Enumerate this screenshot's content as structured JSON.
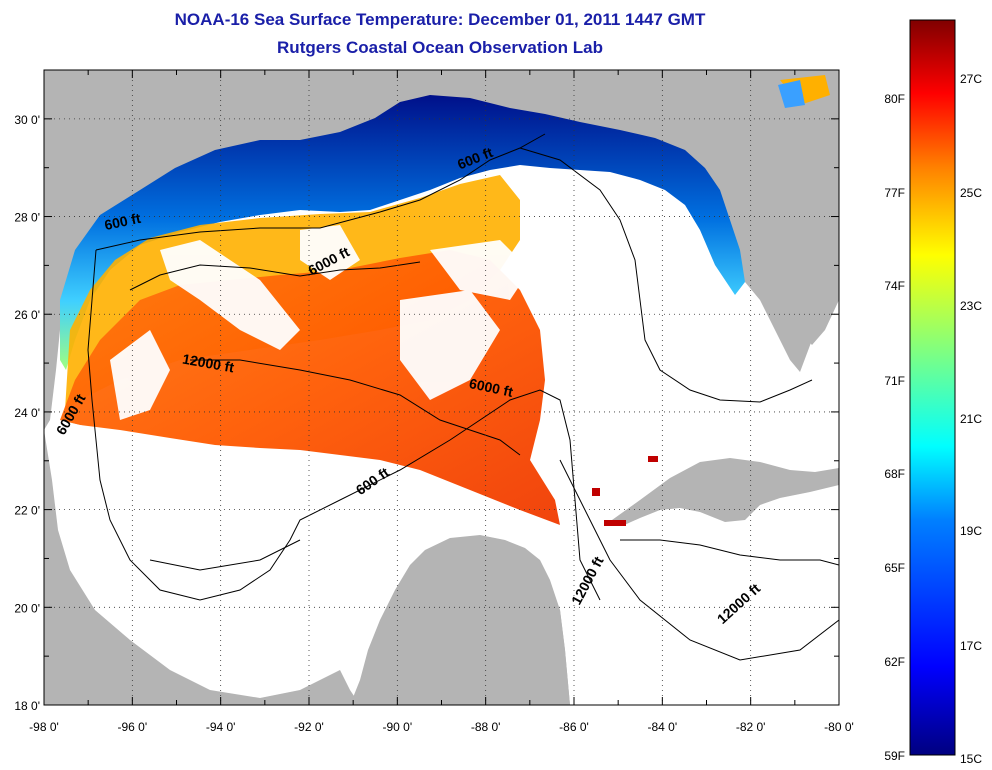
{
  "title": "NOAA-16 Sea Surface Temperature:  December 01, 2011 1447 GMT",
  "subtitle": "Rutgers Coastal Ocean Observation Lab",
  "map": {
    "lon_range": [
      -98,
      -80
    ],
    "lat_range": [
      18,
      31
    ],
    "x_ticks": [
      "-98 0'",
      "-96 0'",
      "-94 0'",
      "-92 0'",
      "-90 0'",
      "-88 0'",
      "-86 0'",
      "-84 0'",
      "-82 0'",
      "-80 0'"
    ],
    "y_ticks": [
      "30 0'",
      "28 0'",
      "26 0'",
      "24 0'",
      "22 0'",
      "20 0'",
      "18 0'"
    ],
    "grid": "dotted",
    "land_color": "#b4b4b4",
    "ocean_color": "#ffffff",
    "contour_labels": [
      {
        "text": "600 ft",
        "lon": -96.2,
        "lat": 27.8
      },
      {
        "text": "6000 ft",
        "lon": -91.5,
        "lat": 27.0
      },
      {
        "text": "600 ft",
        "lon": -88.2,
        "lat": 29.1
      },
      {
        "text": "12000 ft",
        "lon": -94.3,
        "lat": 24.9
      },
      {
        "text": "6000 ft",
        "lon": -87.9,
        "lat": 24.4
      },
      {
        "text": "6000 ft",
        "lon": -97.3,
        "lat": 23.9
      },
      {
        "text": "600 ft",
        "lon": -90.5,
        "lat": 22.5
      },
      {
        "text": "12000 ft",
        "lon": -85.6,
        "lat": 20.5
      },
      {
        "text": "12000 ft",
        "lon": -82.2,
        "lat": 20.0
      }
    ]
  },
  "colorbar": {
    "celsius_labels": [
      "27C",
      "25C",
      "23C",
      "21C",
      "19C",
      "17C",
      "15C"
    ],
    "fahrenheit_labels": [
      "80F",
      "77F",
      "74F",
      "71F",
      "68F",
      "65F",
      "62F",
      "59F"
    ],
    "colors": [
      "#800000",
      "#ff0000",
      "#ff8000",
      "#ffff00",
      "#80ff80",
      "#00ffff",
      "#0080ff",
      "#0000ff",
      "#000080"
    ]
  }
}
